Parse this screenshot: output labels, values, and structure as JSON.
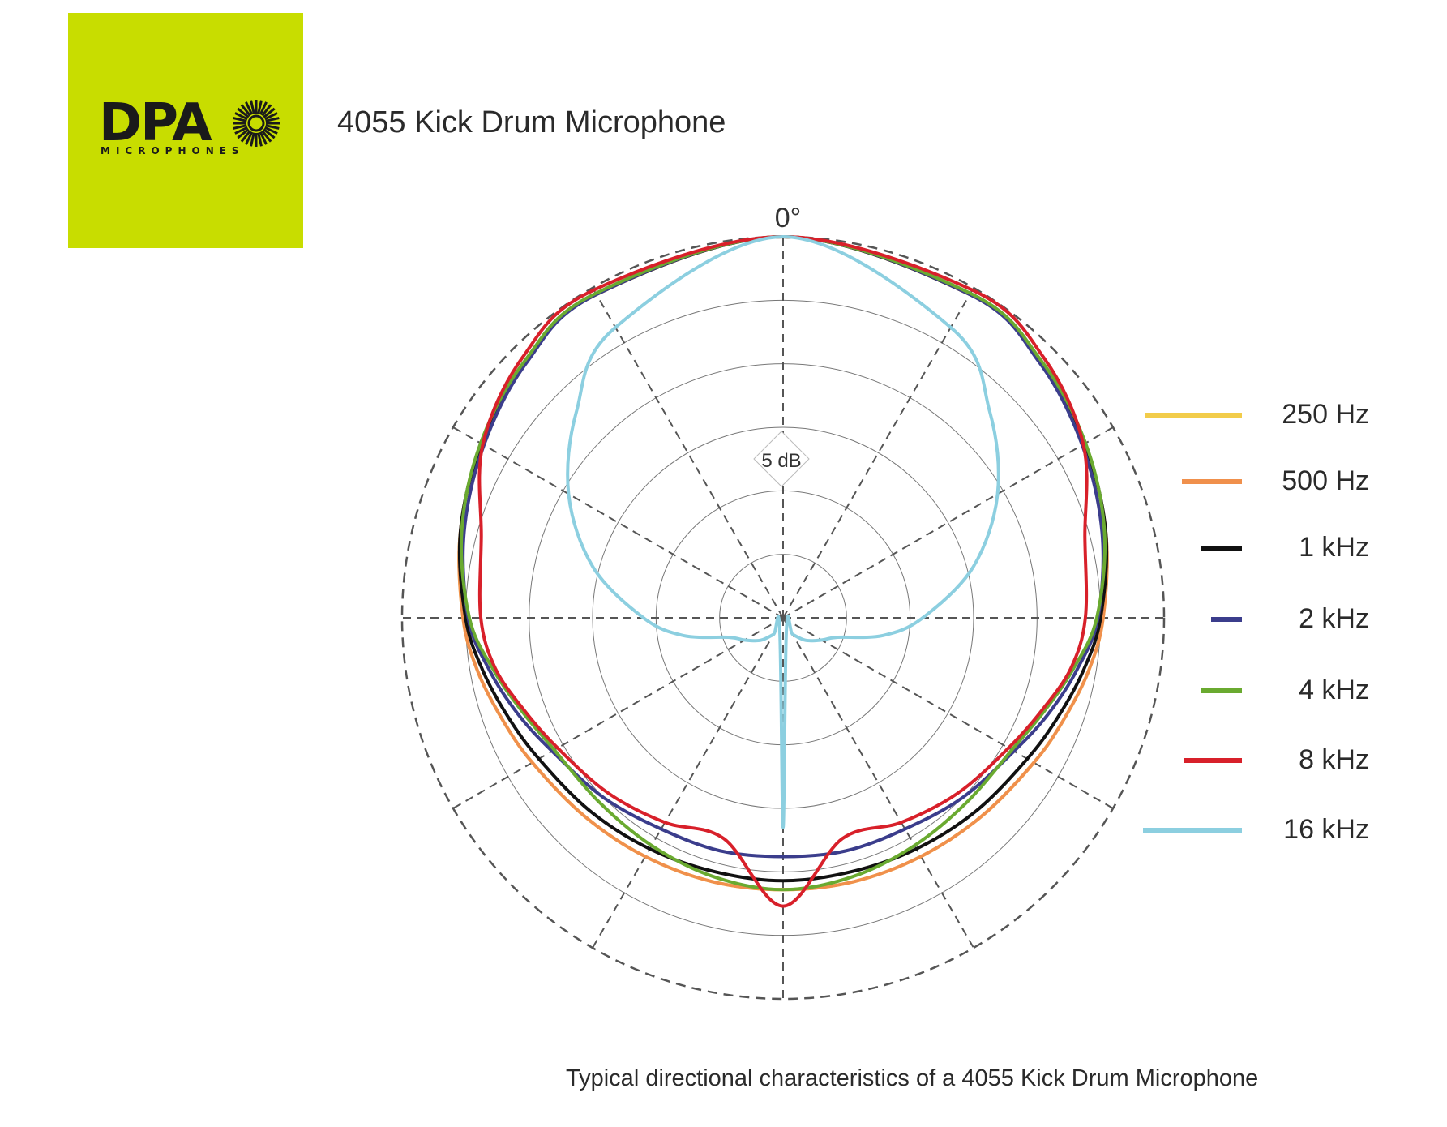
{
  "logo": {
    "brand": "DPA",
    "sub": "MICROPHONES"
  },
  "title": "4055 Kick Drum Microphone",
  "caption": "Typical directional characteristics of a 4055 Kick Drum Microphone",
  "colors": {
    "logo_background": "#c8dd00",
    "250 Hz": "#f2cc4a",
    "500 Hz": "#f0904c",
    "1 kHz": "#111111",
    "2 kHz": "#3b3d8c",
    "4 kHz": "#6aaa30",
    "8 kHz": "#d8202a",
    "16 kHz": "#8ccfe0"
  },
  "chart_data": {
    "type": "polar",
    "angle_label": "0°",
    "scale_label": "5 dB",
    "radial_unit": "dB",
    "rings": 6,
    "spokes_deg": [
      0,
      30,
      60,
      90,
      120,
      150,
      180,
      210,
      240,
      270,
      300,
      330
    ],
    "grid": true,
    "legend_position": "right",
    "angles_deg": [
      0,
      30,
      45,
      60,
      75,
      90,
      100,
      110,
      120,
      135,
      150,
      165,
      180
    ],
    "series": [
      {
        "name": "250 Hz",
        "values": [
          0,
          -0.6,
          -1.4,
          -2.6,
          -3.7,
          -4.8,
          -5.6,
          -6.5,
          -7.2,
          -7.9,
          -8.3,
          -8.5,
          -8.6
        ]
      },
      {
        "name": "500 Hz",
        "values": [
          0,
          -0.6,
          -1.4,
          -2.6,
          -3.7,
          -4.8,
          -5.6,
          -6.5,
          -7.2,
          -7.9,
          -8.3,
          -8.5,
          -8.6
        ]
      },
      {
        "name": "1 kHz",
        "values": [
          0,
          -0.6,
          -1.4,
          -2.6,
          -3.7,
          -5.0,
          -6.0,
          -7.0,
          -7.8,
          -8.5,
          -9.0,
          -9.3,
          -9.3
        ]
      },
      {
        "name": "2 kHz",
        "values": [
          0,
          -0.6,
          -1.5,
          -2.8,
          -4.0,
          -5.2,
          -6.5,
          -7.8,
          -9.0,
          -10.0,
          -10.8,
          -11.0,
          -11.2
        ]
      },
      {
        "name": "4 kHz",
        "values": [
          0,
          -0.5,
          -1.3,
          -2.5,
          -3.8,
          -5.3,
          -6.8,
          -8.2,
          -9.2,
          -9.5,
          -9.3,
          -8.9,
          -8.6
        ]
      },
      {
        "name": "8 kHz",
        "values": [
          0,
          -0.2,
          -1.0,
          -2.7,
          -5.4,
          -6.2,
          -7.0,
          -8.4,
          -9.5,
          -10.5,
          -11.4,
          -12.0,
          -7.3
        ]
      },
      {
        "name": "16 kHz",
        "values": [
          0,
          -3.6,
          -7.0,
          -10.5,
          -14.5,
          -19.0,
          -22.0,
          -25.5,
          -26.5,
          -27.5,
          -28.5,
          -29.0,
          -13.5
        ]
      }
    ]
  }
}
